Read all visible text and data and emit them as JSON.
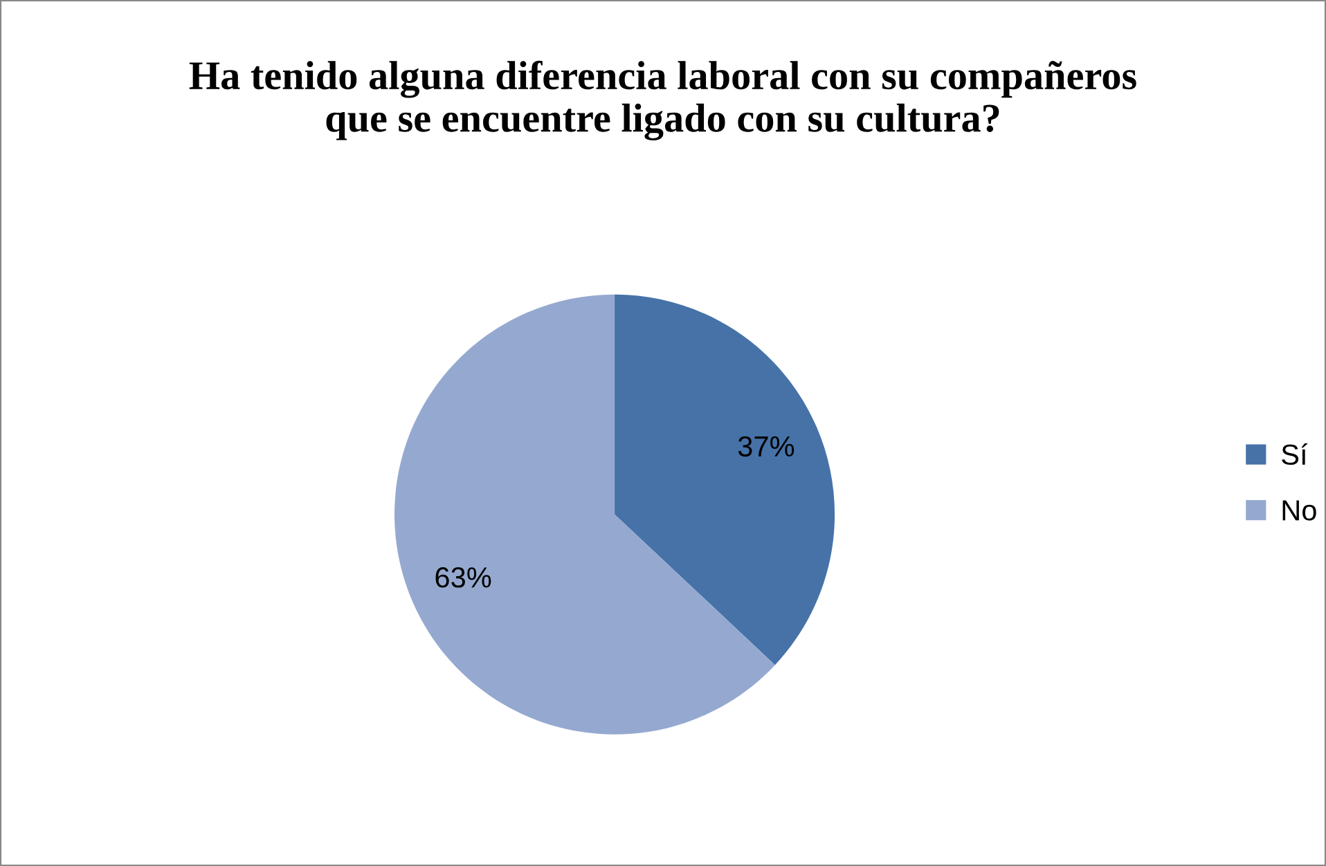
{
  "chart_data": {
    "type": "pie",
    "title": "Ha tenido alguna diferencia laboral con su compañeros\nque se encuentre ligado con su cultura?",
    "categories": [
      "Sí",
      "No"
    ],
    "values": [
      37,
      63
    ],
    "colors": [
      "#4672a8",
      "#95a9d0"
    ],
    "value_labels": [
      "37%",
      "63%"
    ],
    "legend": "right"
  }
}
